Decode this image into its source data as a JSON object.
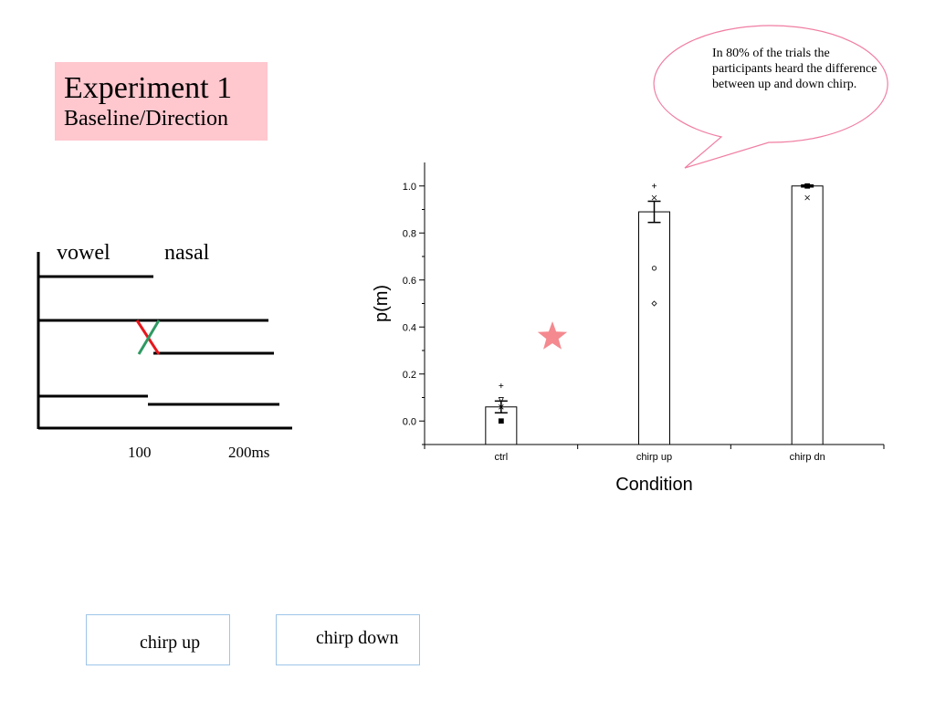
{
  "title": {
    "main": "Experiment 1",
    "sub": "Baseline/Direction"
  },
  "callout": {
    "text": "In 80% of the trials the participants heard the difference between up and down chirp."
  },
  "diagram": {
    "vowel": "vowel",
    "nasal": "nasal",
    "tick_100": "100",
    "tick_200": "200ms"
  },
  "legend": {
    "up": "chirp up",
    "down": "chirp down",
    "up_color": "#2e9a62",
    "down_color": "#e8161c"
  },
  "star_color": "#f4898f",
  "chart_data": {
    "type": "bar",
    "categories": [
      "ctrl",
      "chirp up",
      "chirp dn"
    ],
    "values": [
      0.06,
      0.89,
      1.0
    ],
    "errors": [
      0.025,
      0.045,
      0.004
    ],
    "ylim": [
      -0.1,
      1.1
    ],
    "yticks": [
      "0.0",
      "0.2",
      "0.4",
      "0.6",
      "0.8",
      "1.0"
    ],
    "ylabel": "p(m)",
    "xlabel": "Condition",
    "points": [
      {
        "cat": 0,
        "y": 0.15,
        "marker": "plus"
      },
      {
        "cat": 0,
        "y": 0.09,
        "marker": "triangle-down"
      },
      {
        "cat": 0,
        "y": 0.06,
        "marker": "x"
      },
      {
        "cat": 0,
        "y": 0.0,
        "marker": "square"
      },
      {
        "cat": 1,
        "y": 1.0,
        "marker": "plus"
      },
      {
        "cat": 1,
        "y": 0.95,
        "marker": "x"
      },
      {
        "cat": 1,
        "y": 0.65,
        "marker": "circle"
      },
      {
        "cat": 1,
        "y": 0.5,
        "marker": "diamond"
      },
      {
        "cat": 2,
        "y": 1.0,
        "marker": "square"
      },
      {
        "cat": 2,
        "y": 0.95,
        "marker": "x"
      }
    ]
  }
}
